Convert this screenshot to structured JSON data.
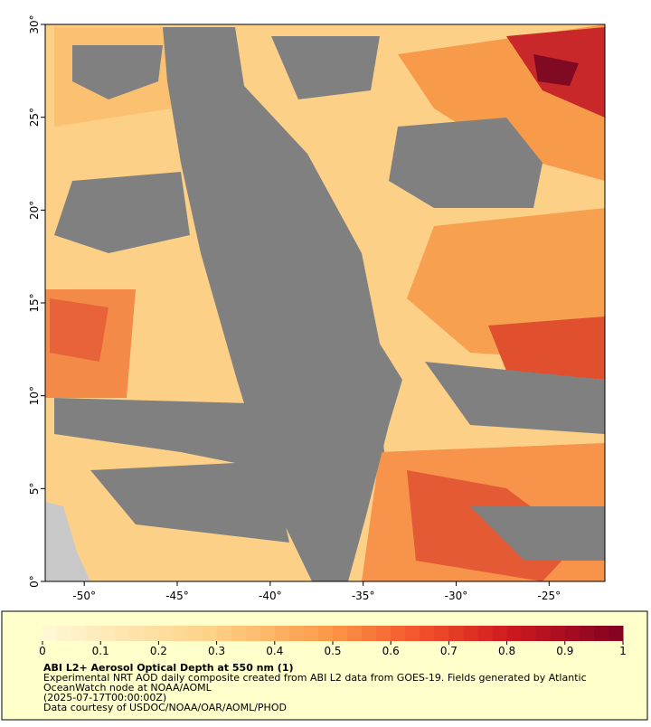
{
  "map": {
    "xlim": [
      -52.1,
      -22
    ],
    "ylim": [
      0,
      30
    ],
    "xticks": [
      {
        "value": -50,
        "label": "-50°"
      },
      {
        "value": -45,
        "label": "-45°"
      },
      {
        "value": -40,
        "label": "-40°"
      },
      {
        "value": -35,
        "label": "-35°"
      },
      {
        "value": -30,
        "label": "-30°"
      },
      {
        "value": -25,
        "label": "-25°"
      }
    ],
    "yticks": [
      {
        "value": 0,
        "label": "0°"
      },
      {
        "value": 5,
        "label": "5°"
      },
      {
        "value": 10,
        "label": "10°"
      },
      {
        "value": 15,
        "label": "15°"
      },
      {
        "value": 20,
        "label": "20°"
      },
      {
        "value": 25,
        "label": "25°"
      },
      {
        "value": 30,
        "label": "30°"
      }
    ],
    "colorbar": {
      "lim": [
        0,
        1
      ],
      "ticks": [
        0,
        0.1,
        0.2,
        0.3,
        0.4,
        0.5,
        0.6,
        0.7,
        0.8,
        0.9,
        1
      ]
    },
    "title": "ABI L2+ Aerosol Optical Depth at 550 nm (1)",
    "caption": [
      "Experimental NRT AOD daily composite created from ABI L2 data from GOES-19. Fields generated by Atlantic",
      "OceanWatch node at NOAA/AOML",
      "(2025-07-17T00:00:00Z)",
      "Data courtesy of USDOC/NOAA/OAR/AOML/PHOD"
    ]
  }
}
